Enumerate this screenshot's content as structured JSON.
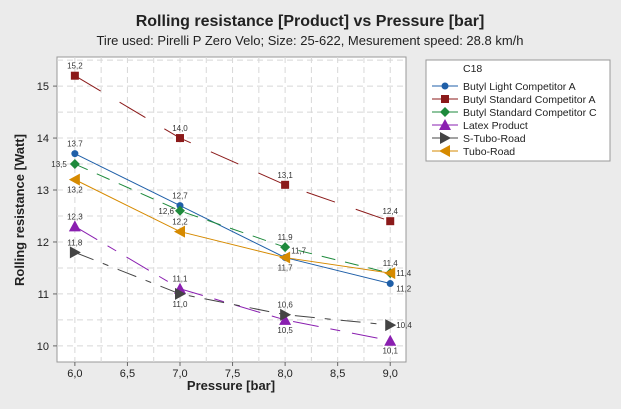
{
  "chart_data": {
    "type": "line",
    "title": "Rolling resistance [Product] vs Pressure [bar]",
    "subtitle": "Tire used: Pirelli P Zero Velo; Size: 25-622, Mesurement speed: 28.8 km/h",
    "xlabel": "Pressure [bar]",
    "ylabel": "Rolling resistance [Watt]",
    "xlim": [
      5.83,
      9.15
    ],
    "ylim": [
      9.69,
      15.56
    ],
    "x_ticks": [
      6.0,
      6.5,
      7.0,
      7.5,
      8.0,
      8.5,
      9.0
    ],
    "x_tick_labels": [
      "6,0",
      "6,5",
      "7,0",
      "7,5",
      "8,0",
      "8,5",
      "9,0"
    ],
    "y_ticks": [
      10,
      11,
      12,
      13,
      14,
      15
    ],
    "y_tick_labels": [
      "10",
      "11",
      "12",
      "13",
      "14",
      "15"
    ],
    "grid": true,
    "legend_title": "C18",
    "legend_position": "right",
    "x": [
      6.0,
      7.0,
      8.0,
      9.0
    ],
    "series": [
      {
        "name": "Butyl Light Competitor A",
        "values": [
          13.7,
          12.7,
          11.7,
          11.2
        ],
        "labels": [
          "13.7",
          "12,7",
          "11,7",
          "11,2"
        ],
        "color": "#1f5fa8",
        "marker": "circle",
        "dash": "solid"
      },
      {
        "name": "Butyl Standard Competitor A",
        "values": [
          15.2,
          14.0,
          13.1,
          12.4
        ],
        "labels": [
          "15,2",
          "14,0",
          "13,1",
          "12,4"
        ],
        "color": "#8b1a1a",
        "marker": "square",
        "dash": "longdash"
      },
      {
        "name": "Butyl Standard Competitor C",
        "values": [
          13.5,
          12.6,
          11.9,
          11.4
        ],
        "labels": [
          "13,5",
          "12,6",
          "11,9",
          "11,4"
        ],
        "color": "#1e8a3c",
        "marker": "diamond",
        "dash": "dash"
      },
      {
        "name": "Latex Product",
        "values": [
          12.3,
          11.1,
          10.5,
          10.1
        ],
        "labels": [
          "12,3",
          "11,1",
          "10,5",
          "10,1"
        ],
        "color": "#8a1fb0",
        "marker": "triangle-up",
        "dash": "dashdot"
      },
      {
        "name": "S-Tubo-Road",
        "values": [
          11.8,
          11.0,
          10.6,
          10.4
        ],
        "labels": [
          "11,8",
          "11,0",
          "10,6",
          "10,4"
        ],
        "color": "#444444",
        "marker": "triangle-right",
        "dash": "dashdot2"
      },
      {
        "name": "Tubo-Road",
        "values": [
          13.2,
          12.2,
          11.7,
          11.4
        ],
        "labels": [
          "13,2",
          "12,2",
          "11,7",
          "11,4"
        ],
        "color": "#d68a00",
        "marker": "triangle-left",
        "dash": "solid"
      }
    ]
  }
}
